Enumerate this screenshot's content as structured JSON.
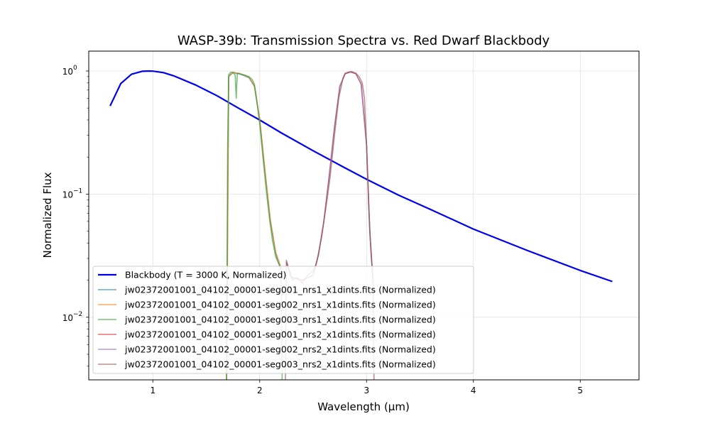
{
  "chart_data": {
    "type": "line",
    "title": "WASP-39b: Transmission Spectra vs. Red Dwarf Blackbody",
    "xlabel": "Wavelength (µm)",
    "ylabel": "Normalized Flux",
    "xlim": [
      0.4,
      5.55
    ],
    "ylim": [
      0.0031,
      1.45
    ],
    "yscale": "log",
    "grid": true,
    "legend_position": "lower-left",
    "x_ticks": [
      {
        "value": 1,
        "label": "1"
      },
      {
        "value": 2,
        "label": "2"
      },
      {
        "value": 3,
        "label": "3"
      },
      {
        "value": 4,
        "label": "4"
      },
      {
        "value": 5,
        "label": "5"
      }
    ],
    "y_ticks": [
      {
        "value": 1,
        "base": "10",
        "exp": "0"
      },
      {
        "value": 0.1,
        "base": "10",
        "exp": "−1"
      },
      {
        "value": 0.01,
        "base": "10",
        "exp": "−2"
      }
    ],
    "series": [
      {
        "name": "Blackbody (T = 3000 K, Normalized)",
        "color": "#0000ee",
        "x": [
          0.6,
          0.7,
          0.8,
          0.9,
          0.966,
          1.0,
          1.1,
          1.2,
          1.4,
          1.6,
          1.8,
          2.0,
          2.2,
          2.5,
          2.8,
          3.0,
          3.3,
          3.6,
          4.0,
          4.5,
          5.0,
          5.3
        ],
        "y": [
          0.52,
          0.79,
          0.94,
          0.995,
          1.0,
          0.997,
          0.97,
          0.91,
          0.77,
          0.63,
          0.5,
          0.4,
          0.315,
          0.225,
          0.163,
          0.132,
          0.098,
          0.075,
          0.052,
          0.035,
          0.024,
          0.0195
        ]
      },
      {
        "name": "jw02372001001_04102_00001-seg001_nrs1_x1dints.fits (Normalized)",
        "color": "#1f77b4",
        "x": [
          1.69,
          1.71,
          1.75,
          1.8,
          1.85,
          1.9,
          1.95,
          2.0,
          2.05,
          2.1,
          2.15,
          2.2
        ],
        "y": [
          0.003,
          0.9,
          0.97,
          0.95,
          0.92,
          0.88,
          0.75,
          0.4,
          0.15,
          0.06,
          0.033,
          0.024
        ]
      },
      {
        "name": "jw02372001001_04102_00001-seg002_nrs1_x1dints.fits (Normalized)",
        "color": "#ff7f0e",
        "x": [
          1.69,
          1.71,
          1.75,
          1.8,
          1.85,
          1.9,
          1.95,
          2.0,
          2.05,
          2.1,
          2.15,
          2.2
        ],
        "y": [
          0.003,
          0.91,
          0.98,
          0.96,
          0.93,
          0.89,
          0.76,
          0.41,
          0.155,
          0.062,
          0.034,
          0.025
        ]
      },
      {
        "name": "jw02372001001_04102_00001-seg003_nrs1_x1dints.fits (Normalized)",
        "color": "#2ca02c",
        "x": [
          1.69,
          1.7,
          1.71,
          1.73,
          1.75,
          1.77,
          1.78,
          1.79,
          1.8,
          1.85,
          1.9,
          1.93,
          1.95,
          1.97,
          2.0,
          2.03,
          2.06,
          2.09,
          2.12,
          2.15,
          2.18,
          2.2,
          2.21
        ],
        "y": [
          0.003,
          0.25,
          0.93,
          0.98,
          0.97,
          0.93,
          0.6,
          0.95,
          0.96,
          0.93,
          0.9,
          0.85,
          0.78,
          0.6,
          0.37,
          0.2,
          0.11,
          0.065,
          0.042,
          0.031,
          0.027,
          0.025,
          0.003
        ]
      },
      {
        "name": "jw02372001001_04102_00001-seg001_nrs2_x1dints.fits (Normalized)",
        "color": "#d62728",
        "x": [
          2.25,
          2.3,
          2.4,
          2.5,
          2.55,
          2.6,
          2.65,
          2.7,
          2.75,
          2.8,
          2.85,
          2.9,
          2.95,
          3.0,
          3.03,
          3.06
        ],
        "y": [
          0.028,
          0.021,
          0.02,
          0.022,
          0.032,
          0.06,
          0.14,
          0.35,
          0.75,
          0.95,
          0.98,
          0.95,
          0.78,
          0.25,
          0.05,
          0.02
        ]
      },
      {
        "name": "jw02372001001_04102_00001-seg002_nrs2_x1dints.fits (Normalized)",
        "color": "#9467bd",
        "x": [
          2.25,
          2.3,
          2.4,
          2.5,
          2.55,
          2.6,
          2.65,
          2.7,
          2.75,
          2.8,
          2.85,
          2.9,
          2.95,
          3.0,
          3.03,
          3.06
        ],
        "y": [
          0.028,
          0.021,
          0.02,
          0.022,
          0.032,
          0.06,
          0.14,
          0.35,
          0.75,
          0.95,
          0.98,
          0.95,
          0.78,
          0.25,
          0.05,
          0.02
        ]
      },
      {
        "name": "jw02372001001_04102_00001-seg003_nrs2_x1dints.fits (Normalized)",
        "color": "#8c564b",
        "x": [
          2.24,
          2.25,
          2.28,
          2.3,
          2.35,
          2.4,
          2.45,
          2.5,
          2.53,
          2.55,
          2.58,
          2.6,
          2.63,
          2.66,
          2.7,
          2.74,
          2.78,
          2.8,
          2.83,
          2.86,
          2.9,
          2.93,
          2.96,
          2.98,
          3.0,
          3.02,
          3.04,
          3.06,
          3.07
        ],
        "y": [
          0.003,
          0.029,
          0.023,
          0.02,
          0.021,
          0.019,
          0.022,
          0.024,
          0.027,
          0.033,
          0.045,
          0.06,
          0.09,
          0.14,
          0.3,
          0.6,
          0.88,
          0.96,
          0.98,
          0.99,
          0.96,
          0.9,
          0.8,
          0.6,
          0.25,
          0.08,
          0.035,
          0.02,
          0.003
        ]
      }
    ]
  }
}
